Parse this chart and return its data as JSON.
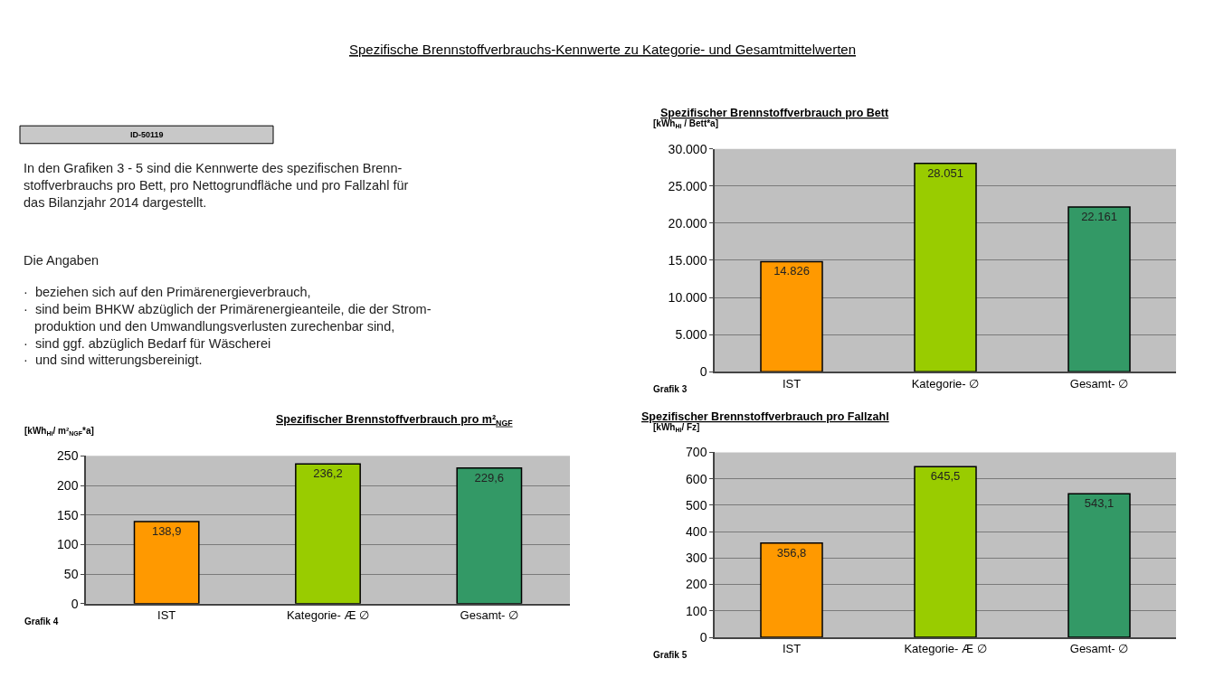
{
  "chart_data": [
    {
      "type": "other",
      "title": "Spezifische Brennstoffverbrauchs-Kennwerte zu Kategorie- und Gesamtmittelwerten",
      "annotations": [
        "ID-50119",
        "In den Grafiken 3 - 5 sind die Kennwerte des spezifischen Brenn-\nstoffverbrauchs pro Bett, pro Nettogrundfläche und pro Fallzahl für\ndas Bilanzjahr 2014 dargestellt.",
        "Die Angaben",
        "·  beziehen sich auf den Primärenergieverbrauch,\n·  sind beim BHKW abzüglich der Primärenergieanteile, die der Strom-\n   produktion und den Umwandlungsverlusten zurechenbar sind,\n·  sind ggf. abzüglich Bedarf für Wäscherei\n·  und sind witterungsbereinigt."
      ]
    },
    {
      "type": "bar",
      "title": "Spezifischer Brennstoffverbrauch pro Bett",
      "ylabel": "[kWh$_{Hi}$ / Bett*a]",
      "categories": [
        "IST",
        "Kategorie- ∅",
        "Gesamt- ∅"
      ],
      "values": [
        14826,
        28051,
        22161
      ],
      "value_labels": [
        "14.826",
        "28.051",
        "22.161"
      ],
      "colors": [
        "#ff9900",
        "#99cc00",
        "#339966"
      ],
      "ylim": [
        0,
        30000
      ],
      "yticks": [
        0,
        {
          "value": 5000,
          "label": "5.000"
        },
        {
          "value": 10000,
          "label": "10.000"
        },
        {
          "value": 15000,
          "label": "15.000"
        },
        {
          "value": 20000,
          "label": "20.000"
        },
        {
          "value": 25000,
          "label": "25.000"
        },
        {
          "value": 30000,
          "label": "30.000"
        }
      ],
      "grid": "y",
      "annotations": [
        "Grafik 3"
      ]
    },
    {
      "type": "bar",
      "title": "Spezifischer Brennstoffverbrauch pro m²$_{NGF}$",
      "ylabel": "[kWh$_{Hi}$/ m²$_{NGF}$*a]",
      "categories": [
        "IST",
        "Kategorie- Æ ∅",
        "Gesamt- ∅"
      ],
      "values": [
        138.9,
        236.2,
        229.6
      ],
      "value_labels": [
        "138,9",
        "236,2",
        "229,6"
      ],
      "colors": [
        "#ff9900",
        "#99cc00",
        "#339966"
      ],
      "ylim": [
        0,
        250
      ],
      "yticks": [
        0,
        50,
        100,
        150,
        200,
        250
      ],
      "grid": "y",
      "annotations": [
        "Grafik 4"
      ]
    },
    {
      "type": "bar",
      "title": "Spezifischer Brennstoffverbrauch pro Fallzahl",
      "ylabel": "[kWh$_{Hi}$/ Fz]",
      "categories": [
        "IST",
        "Kategorie- Æ ∅",
        "Gesamt- ∅"
      ],
      "values": [
        356.8,
        645.5,
        543.1
      ],
      "value_labels": [
        "356,8",
        "645,5",
        "543,1"
      ],
      "colors": [
        "#ff9900",
        "#99cc00",
        "#339966"
      ],
      "ylim": [
        0,
        700
      ],
      "yticks": [
        0,
        100,
        200,
        300,
        400,
        500,
        600,
        700
      ],
      "grid": "y",
      "annotations": [
        "Grafik 5"
      ]
    }
  ]
}
